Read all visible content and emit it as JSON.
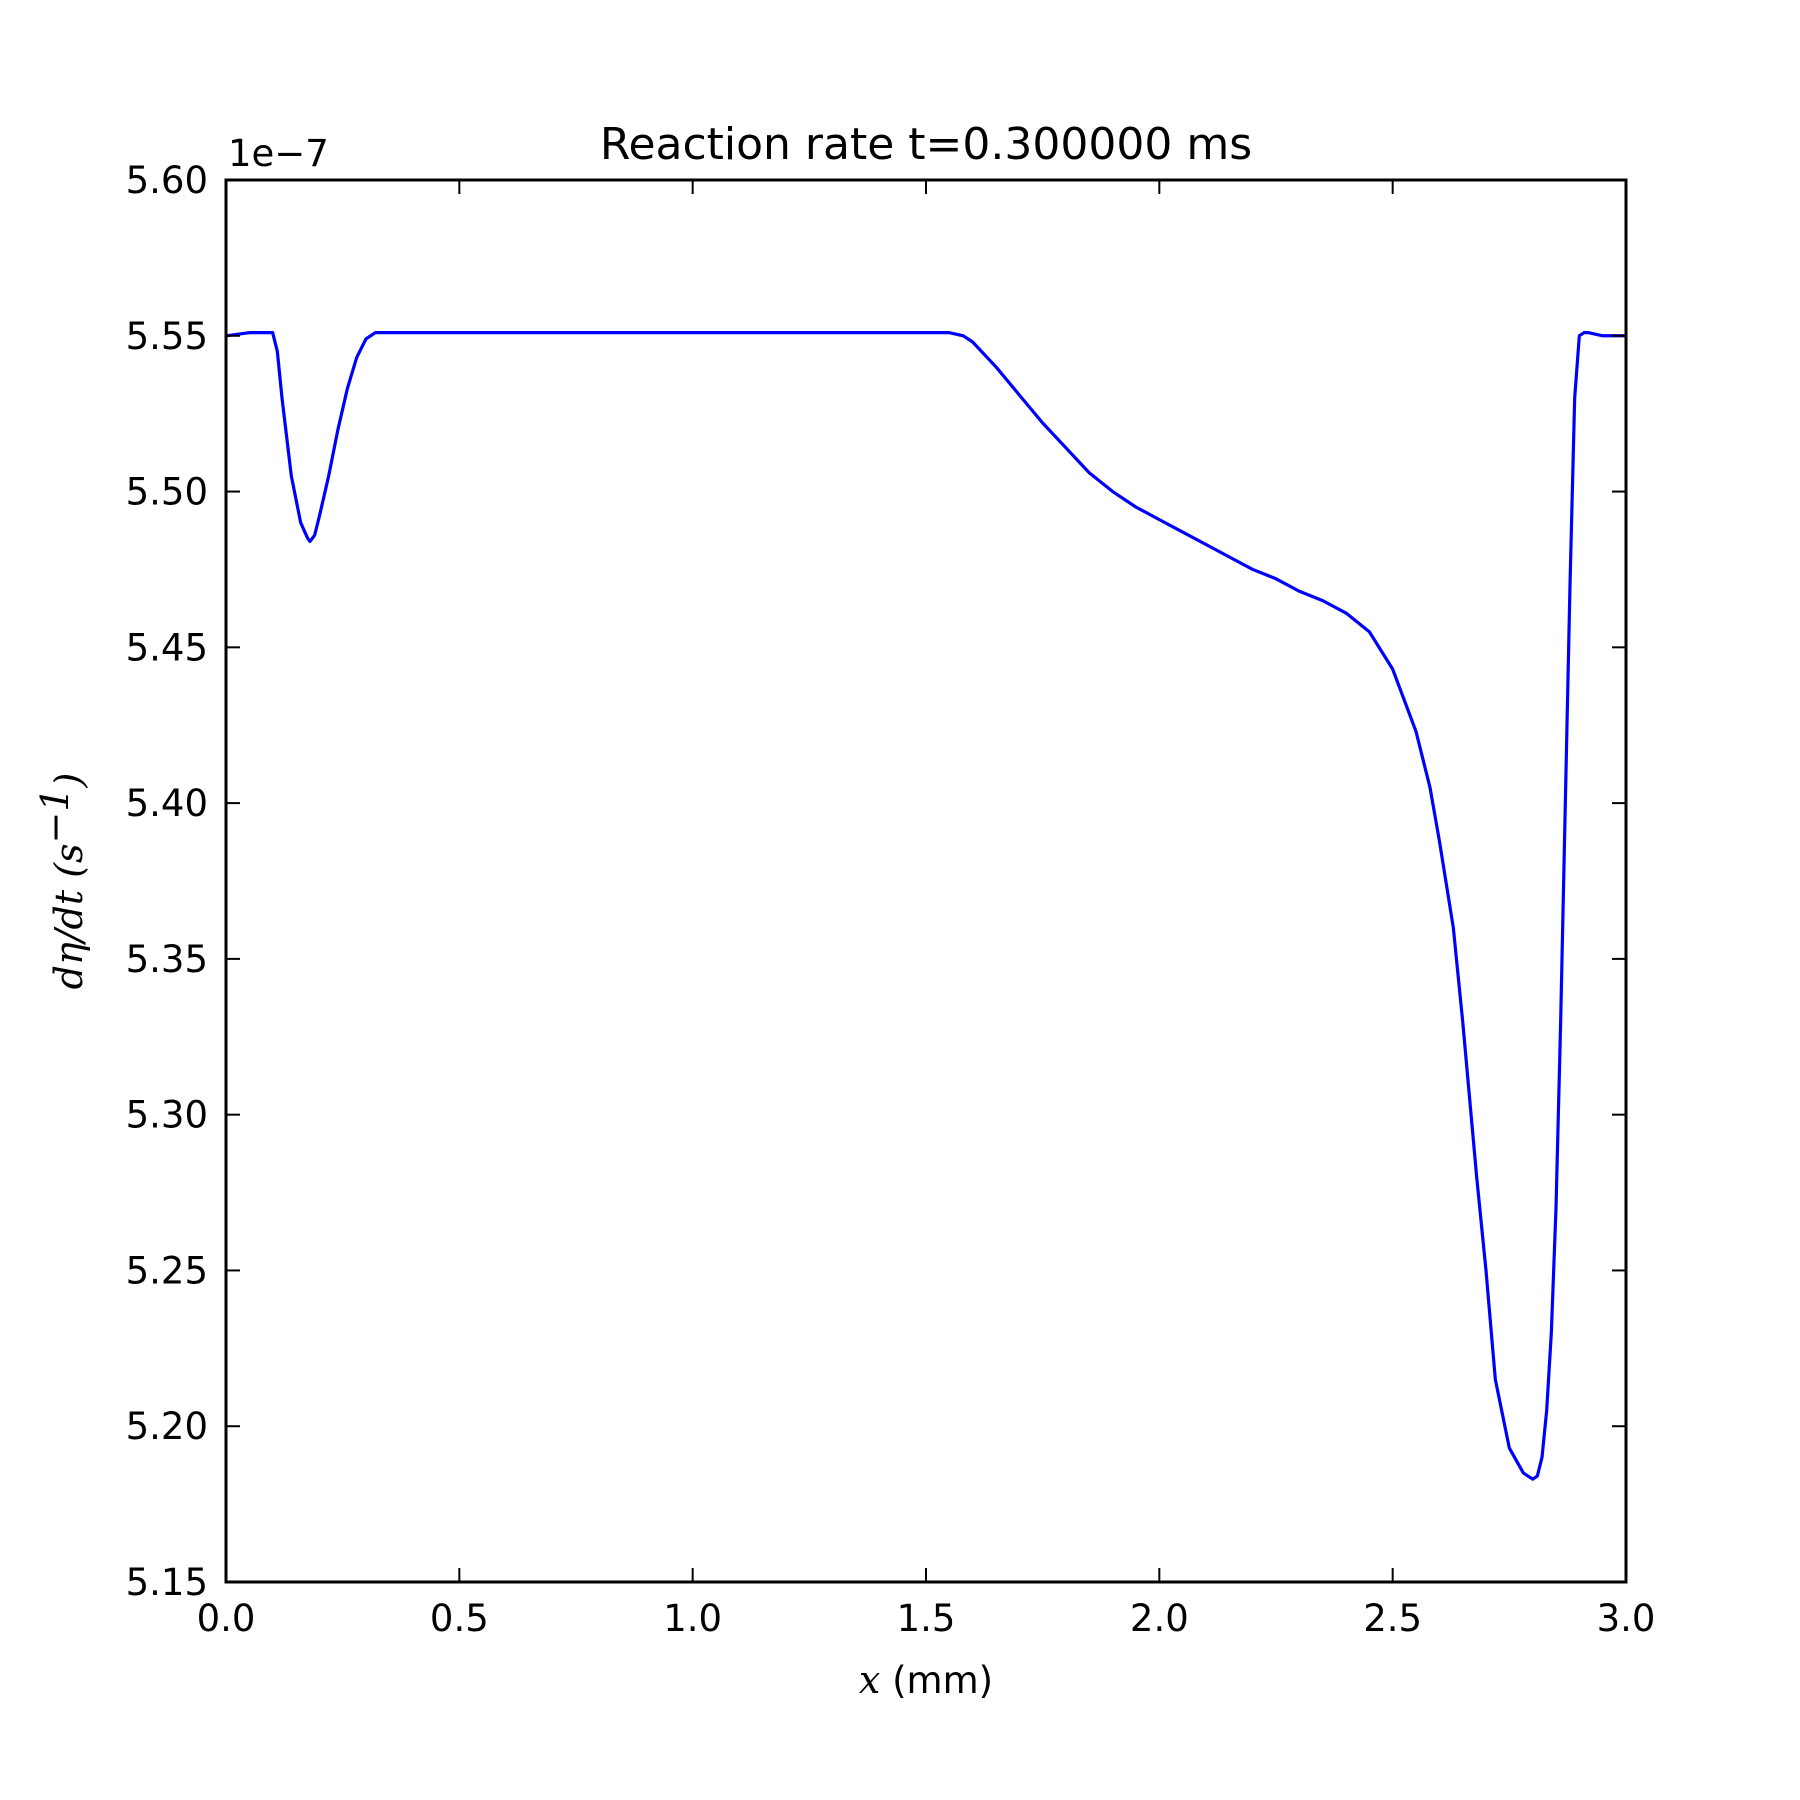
{
  "chart_data": {
    "type": "line",
    "title": "Reaction rate t=0.300000 ms",
    "xlabel_math": "x",
    "xlabel_unit": " (mm)",
    "ylabel_math": "dη/dt",
    "ylabel_unit_open": " (s",
    "ylabel_unit_sup": "−1",
    "ylabel_unit_close": ")",
    "y_offset_label": "1e−7",
    "xlim": [
      0.0,
      3.0
    ],
    "ylim": [
      5.15,
      5.6
    ],
    "x_ticks": [
      0.0,
      0.5,
      1.0,
      1.5,
      2.0,
      2.5,
      3.0
    ],
    "x_tick_labels": [
      "0.0",
      "0.5",
      "1.0",
      "1.5",
      "2.0",
      "2.5",
      "3.0"
    ],
    "y_ticks": [
      5.15,
      5.2,
      5.25,
      5.3,
      5.35,
      5.4,
      5.45,
      5.5,
      5.55,
      5.6
    ],
    "y_tick_labels": [
      "5.15",
      "5.20",
      "5.25",
      "5.30",
      "5.35",
      "5.40",
      "5.45",
      "5.50",
      "5.55",
      "5.60"
    ],
    "grid": false,
    "series": [
      {
        "color": "#0000ff",
        "x": [
          0.0,
          0.05,
          0.1,
          0.11,
          0.12,
          0.14,
          0.16,
          0.175,
          0.18,
          0.19,
          0.2,
          0.22,
          0.24,
          0.26,
          0.28,
          0.3,
          0.32,
          0.34,
          0.4,
          0.6,
          0.8,
          1.0,
          1.2,
          1.4,
          1.55,
          1.58,
          1.6,
          1.65,
          1.7,
          1.75,
          1.8,
          1.85,
          1.9,
          1.95,
          2.0,
          2.05,
          2.1,
          2.15,
          2.2,
          2.25,
          2.3,
          2.35,
          2.4,
          2.45,
          2.5,
          2.55,
          2.58,
          2.6,
          2.63,
          2.65,
          2.68,
          2.7,
          2.72,
          2.75,
          2.78,
          2.8,
          2.81,
          2.82,
          2.83,
          2.84,
          2.85,
          2.86,
          2.87,
          2.88,
          2.89,
          2.9,
          2.91,
          2.92,
          2.95,
          3.0
        ],
        "y": [
          5.55,
          5.551,
          5.551,
          5.545,
          5.53,
          5.505,
          5.49,
          5.485,
          5.484,
          5.486,
          5.492,
          5.505,
          5.52,
          5.533,
          5.543,
          5.549,
          5.551,
          5.551,
          5.551,
          5.551,
          5.551,
          5.551,
          5.551,
          5.551,
          5.551,
          5.55,
          5.548,
          5.54,
          5.531,
          5.522,
          5.514,
          5.506,
          5.5,
          5.495,
          5.491,
          5.487,
          5.483,
          5.479,
          5.475,
          5.472,
          5.468,
          5.465,
          5.461,
          5.455,
          5.443,
          5.423,
          5.405,
          5.388,
          5.36,
          5.33,
          5.28,
          5.25,
          5.215,
          5.193,
          5.185,
          5.183,
          5.184,
          5.19,
          5.205,
          5.23,
          5.27,
          5.33,
          5.4,
          5.47,
          5.53,
          5.55,
          5.551,
          5.551,
          5.55,
          5.55
        ]
      }
    ]
  }
}
